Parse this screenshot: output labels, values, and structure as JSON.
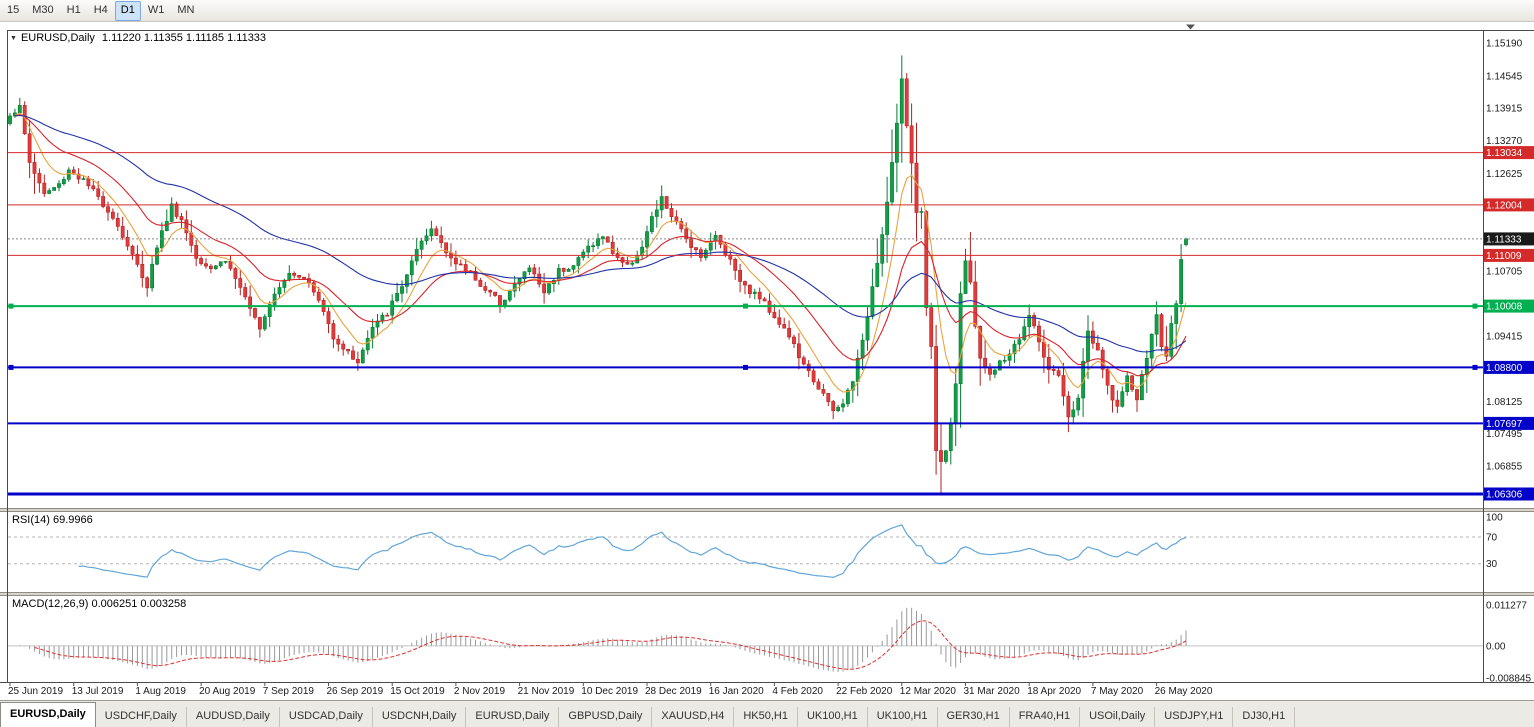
{
  "toolbar": {
    "timeframes": [
      {
        "label": "15",
        "active": false
      },
      {
        "label": "M30",
        "active": false
      },
      {
        "label": "H1",
        "active": false
      },
      {
        "label": "H4",
        "active": false
      },
      {
        "label": "D1",
        "active": true
      },
      {
        "label": "W1",
        "active": false
      },
      {
        "label": "MN",
        "active": false
      }
    ]
  },
  "chart": {
    "symbol_label": "EURUSD,Daily",
    "ohlc_text": "1.11220 1.11355 1.11185 1.11333"
  },
  "indicators": {
    "rsi_label": "RSI(14) 69.9966",
    "macd_label": "MACD(12,26,9) 0.006251 0.003258"
  },
  "tabs": [
    {
      "label": "EURUSD,Daily",
      "active": true
    },
    {
      "label": "USDCHF,Daily",
      "active": false
    },
    {
      "label": "AUDUSD,Daily",
      "active": false
    },
    {
      "label": "USDCAD,Daily",
      "active": false
    },
    {
      "label": "USDCNH,Daily",
      "active": false
    },
    {
      "label": "EURUSD,Daily",
      "active": false
    },
    {
      "label": "GBPUSD,Daily",
      "active": false
    },
    {
      "label": "XAUUSD,H4",
      "active": false
    },
    {
      "label": "HK50,H1",
      "active": false
    },
    {
      "label": "UK100,H1",
      "active": false
    },
    {
      "label": "UK100,H1",
      "active": false
    },
    {
      "label": "GER30,H1",
      "active": false
    },
    {
      "label": "FRA40,H1",
      "active": false
    },
    {
      "label": "USOil,Daily",
      "active": false
    },
    {
      "label": "USDJPY,H1",
      "active": false
    },
    {
      "label": "DJ30,H1",
      "active": false
    }
  ],
  "chart_data": {
    "type": "candlestick",
    "symbol": "EURUSD",
    "timeframe": "Daily",
    "bars_total": 241,
    "ohlc_current": {
      "open": 1.1122,
      "high": 1.11355,
      "low": 1.11185,
      "close": 1.11333
    },
    "current_price": {
      "value": 1.11333,
      "label": "1.11333"
    },
    "price_axis": {
      "min": 1.0603,
      "max": 1.1545,
      "ticks": [
        "1.15190",
        "1.14545",
        "1.13915",
        "1.13270",
        "1.12625",
        "1.10705",
        "1.09415",
        "1.08125",
        "1.07495",
        "1.06855"
      ]
    },
    "colors": {
      "up": "#0fa046",
      "up_border": "#087a33",
      "down": "#e23b3b",
      "down_border": "#b32222",
      "wick": "#444444"
    },
    "hlines": [
      {
        "value": 1.13034,
        "label": "1.13034",
        "color": "#d42a2a",
        "width": 1,
        "handles": false
      },
      {
        "value": 1.12004,
        "label": "1.12004",
        "color": "#d42a2a",
        "width": 1,
        "handles": false
      },
      {
        "value": 1.11009,
        "label": "1.11009",
        "color": "#d42a2a",
        "width": 1,
        "handles": false
      },
      {
        "value": 1.10008,
        "label": "1.10008",
        "color": "#00b050",
        "width": 2,
        "handles": true
      },
      {
        "value": 1.088,
        "label": "1.08800",
        "color": "#0202c8",
        "width": 2,
        "handles": true
      },
      {
        "value": 1.07697,
        "label": "1.07697",
        "color": "#0202c8",
        "width": 2,
        "handles": false
      },
      {
        "value": 1.06306,
        "label": "1.06306",
        "color": "#0202c8",
        "width": 3,
        "handles": false
      }
    ],
    "moving_averages": [
      {
        "period": 8,
        "type": "ema",
        "color": "#e8a33d"
      },
      {
        "period": 21,
        "type": "ema",
        "color": "#d9232a"
      },
      {
        "period": 55,
        "type": "ema",
        "color": "#2233aa"
      }
    ],
    "anchors": [
      [
        0,
        1.138
      ],
      [
        2,
        1.1392
      ],
      [
        4,
        1.1285
      ],
      [
        7,
        1.1222
      ],
      [
        10,
        1.124
      ],
      [
        12,
        1.127
      ],
      [
        15,
        1.1248
      ],
      [
        18,
        1.1215
      ],
      [
        21,
        1.1178
      ],
      [
        24,
        1.112
      ],
      [
        26,
        1.108
      ],
      [
        28,
        1.1042
      ],
      [
        30,
        1.112
      ],
      [
        33,
        1.1198
      ],
      [
        35,
        1.117
      ],
      [
        38,
        1.1098
      ],
      [
        41,
        1.1078
      ],
      [
        44,
        1.1092
      ],
      [
        47,
        1.1038
      ],
      [
        49,
        1.099
      ],
      [
        51,
        1.0962
      ],
      [
        54,
        1.103
      ],
      [
        57,
        1.1068
      ],
      [
        60,
        1.106
      ],
      [
        63,
        1.1012
      ],
      [
        66,
        1.0942
      ],
      [
        69,
        1.0908
      ],
      [
        71,
        1.0892
      ],
      [
        74,
        1.0958
      ],
      [
        77,
        1.0988
      ],
      [
        80,
        1.1042
      ],
      [
        83,
        1.1108
      ],
      [
        86,
        1.1152
      ],
      [
        88,
        1.1128
      ],
      [
        91,
        1.1082
      ],
      [
        94,
        1.1068
      ],
      [
        97,
        1.1032
      ],
      [
        100,
        1.1008
      ],
      [
        103,
        1.1042
      ],
      [
        106,
        1.1078
      ],
      [
        109,
        1.1028
      ],
      [
        112,
        1.1072
      ],
      [
        115,
        1.1082
      ],
      [
        118,
        1.1118
      ],
      [
        121,
        1.1138
      ],
      [
        123,
        1.1108
      ],
      [
        126,
        1.1078
      ],
      [
        129,
        1.1118
      ],
      [
        131,
        1.1172
      ],
      [
        133,
        1.1212
      ],
      [
        136,
        1.1162
      ],
      [
        139,
        1.1122
      ],
      [
        141,
        1.1102
      ],
      [
        144,
        1.1138
      ],
      [
        147,
        1.1092
      ],
      [
        150,
        1.1038
      ],
      [
        153,
        1.1018
      ],
      [
        156,
        1.0982
      ],
      [
        159,
        1.0942
      ],
      [
        162,
        1.0882
      ],
      [
        165,
        1.0842
      ],
      [
        168,
        1.0792
      ],
      [
        170,
        1.0808
      ],
      [
        172,
        1.0858
      ],
      [
        174,
        1.0928
      ],
      [
        176,
        1.1042
      ],
      [
        178,
        1.1142
      ],
      [
        180,
        1.1282
      ],
      [
        182,
        1.1442
      ],
      [
        183,
        1.1358
      ],
      [
        184,
        1.1282
      ],
      [
        185,
        1.1192
      ],
      [
        186,
        1.1182
      ],
      [
        187,
        1.1002
      ],
      [
        188,
        1.0922
      ],
      [
        189,
        1.0718
      ],
      [
        190,
        1.0692
      ],
      [
        191,
        1.0722
      ],
      [
        192,
        1.0772
      ],
      [
        193,
        1.0852
      ],
      [
        194,
        1.1028
      ],
      [
        195,
        1.1088
      ],
      [
        196,
        1.1042
      ],
      [
        197,
        1.0962
      ],
      [
        198,
        1.0902
      ],
      [
        200,
        1.0862
      ],
      [
        202,
        1.0888
      ],
      [
        204,
        1.0908
      ],
      [
        206,
        1.0938
      ],
      [
        208,
        1.0982
      ],
      [
        210,
        1.0932
      ],
      [
        212,
        1.0872
      ],
      [
        214,
        1.0862
      ],
      [
        216,
        1.0778
      ],
      [
        218,
        1.0822
      ],
      [
        220,
        1.0952
      ],
      [
        222,
        1.0908
      ],
      [
        224,
        1.0842
      ],
      [
        226,
        1.0802
      ],
      [
        228,
        1.0858
      ],
      [
        230,
        1.0818
      ],
      [
        232,
        1.0902
      ],
      [
        234,
        1.0982
      ],
      [
        235,
        1.0922
      ],
      [
        236,
        1.0902
      ],
      [
        237,
        1.0962
      ],
      [
        238,
        1.1012
      ],
      [
        239,
        1.1098
      ],
      [
        240,
        1.1133
      ]
    ],
    "wick_overrides": [
      [
        182,
        "h",
        1.1495
      ],
      [
        183,
        "h",
        1.146
      ],
      [
        168,
        "l",
        1.0778
      ],
      [
        189,
        "l",
        1.068
      ],
      [
        190,
        "l",
        1.0637
      ],
      [
        196,
        "h",
        1.1147
      ]
    ],
    "date_ticks": [
      {
        "bar": 0,
        "label": "25 Jun 2019"
      },
      {
        "bar": 13,
        "label": "13 Jul 2019"
      },
      {
        "bar": 26,
        "label": "1 Aug 2019"
      },
      {
        "bar": 39,
        "label": "20 Aug 2019"
      },
      {
        "bar": 52,
        "label": "7 Sep 2019"
      },
      {
        "bar": 65,
        "label": "26 Sep 2019"
      },
      {
        "bar": 78,
        "label": "15 Oct 2019"
      },
      {
        "bar": 91,
        "label": "2 Nov 2019"
      },
      {
        "bar": 104,
        "label": "21 Nov 2019"
      },
      {
        "bar": 117,
        "label": "10 Dec 2019"
      },
      {
        "bar": 130,
        "label": "28 Dec 2019"
      },
      {
        "bar": 143,
        "label": "16 Jan 2020"
      },
      {
        "bar": 156,
        "label": "4 Feb 2020"
      },
      {
        "bar": 169,
        "label": "22 Feb 2020"
      },
      {
        "bar": 182,
        "label": "12 Mar 2020"
      },
      {
        "bar": 195,
        "label": "31 Mar 2020"
      },
      {
        "bar": 208,
        "label": "18 Apr 2020"
      },
      {
        "bar": 221,
        "label": "7 May 2020"
      },
      {
        "bar": 234,
        "label": "26 May 2020"
      }
    ],
    "rsi": {
      "period": 14,
      "current": "69.9966",
      "levels": [
        "100",
        "70",
        "30"
      ],
      "overbought": 70,
      "oversold": 30,
      "color": "#63a6d8"
    },
    "macd": {
      "fast": 12,
      "slow": 26,
      "signal": 9,
      "current": "0.006251",
      "signal_current": "0.003258",
      "axis_labels": [
        "0.011277",
        "0.00",
        "-0.008845"
      ],
      "axis_max": 0.011277,
      "axis_min": -0.008845,
      "histogram_color": "#9a9a9a",
      "signal_color": "#e03030"
    }
  }
}
